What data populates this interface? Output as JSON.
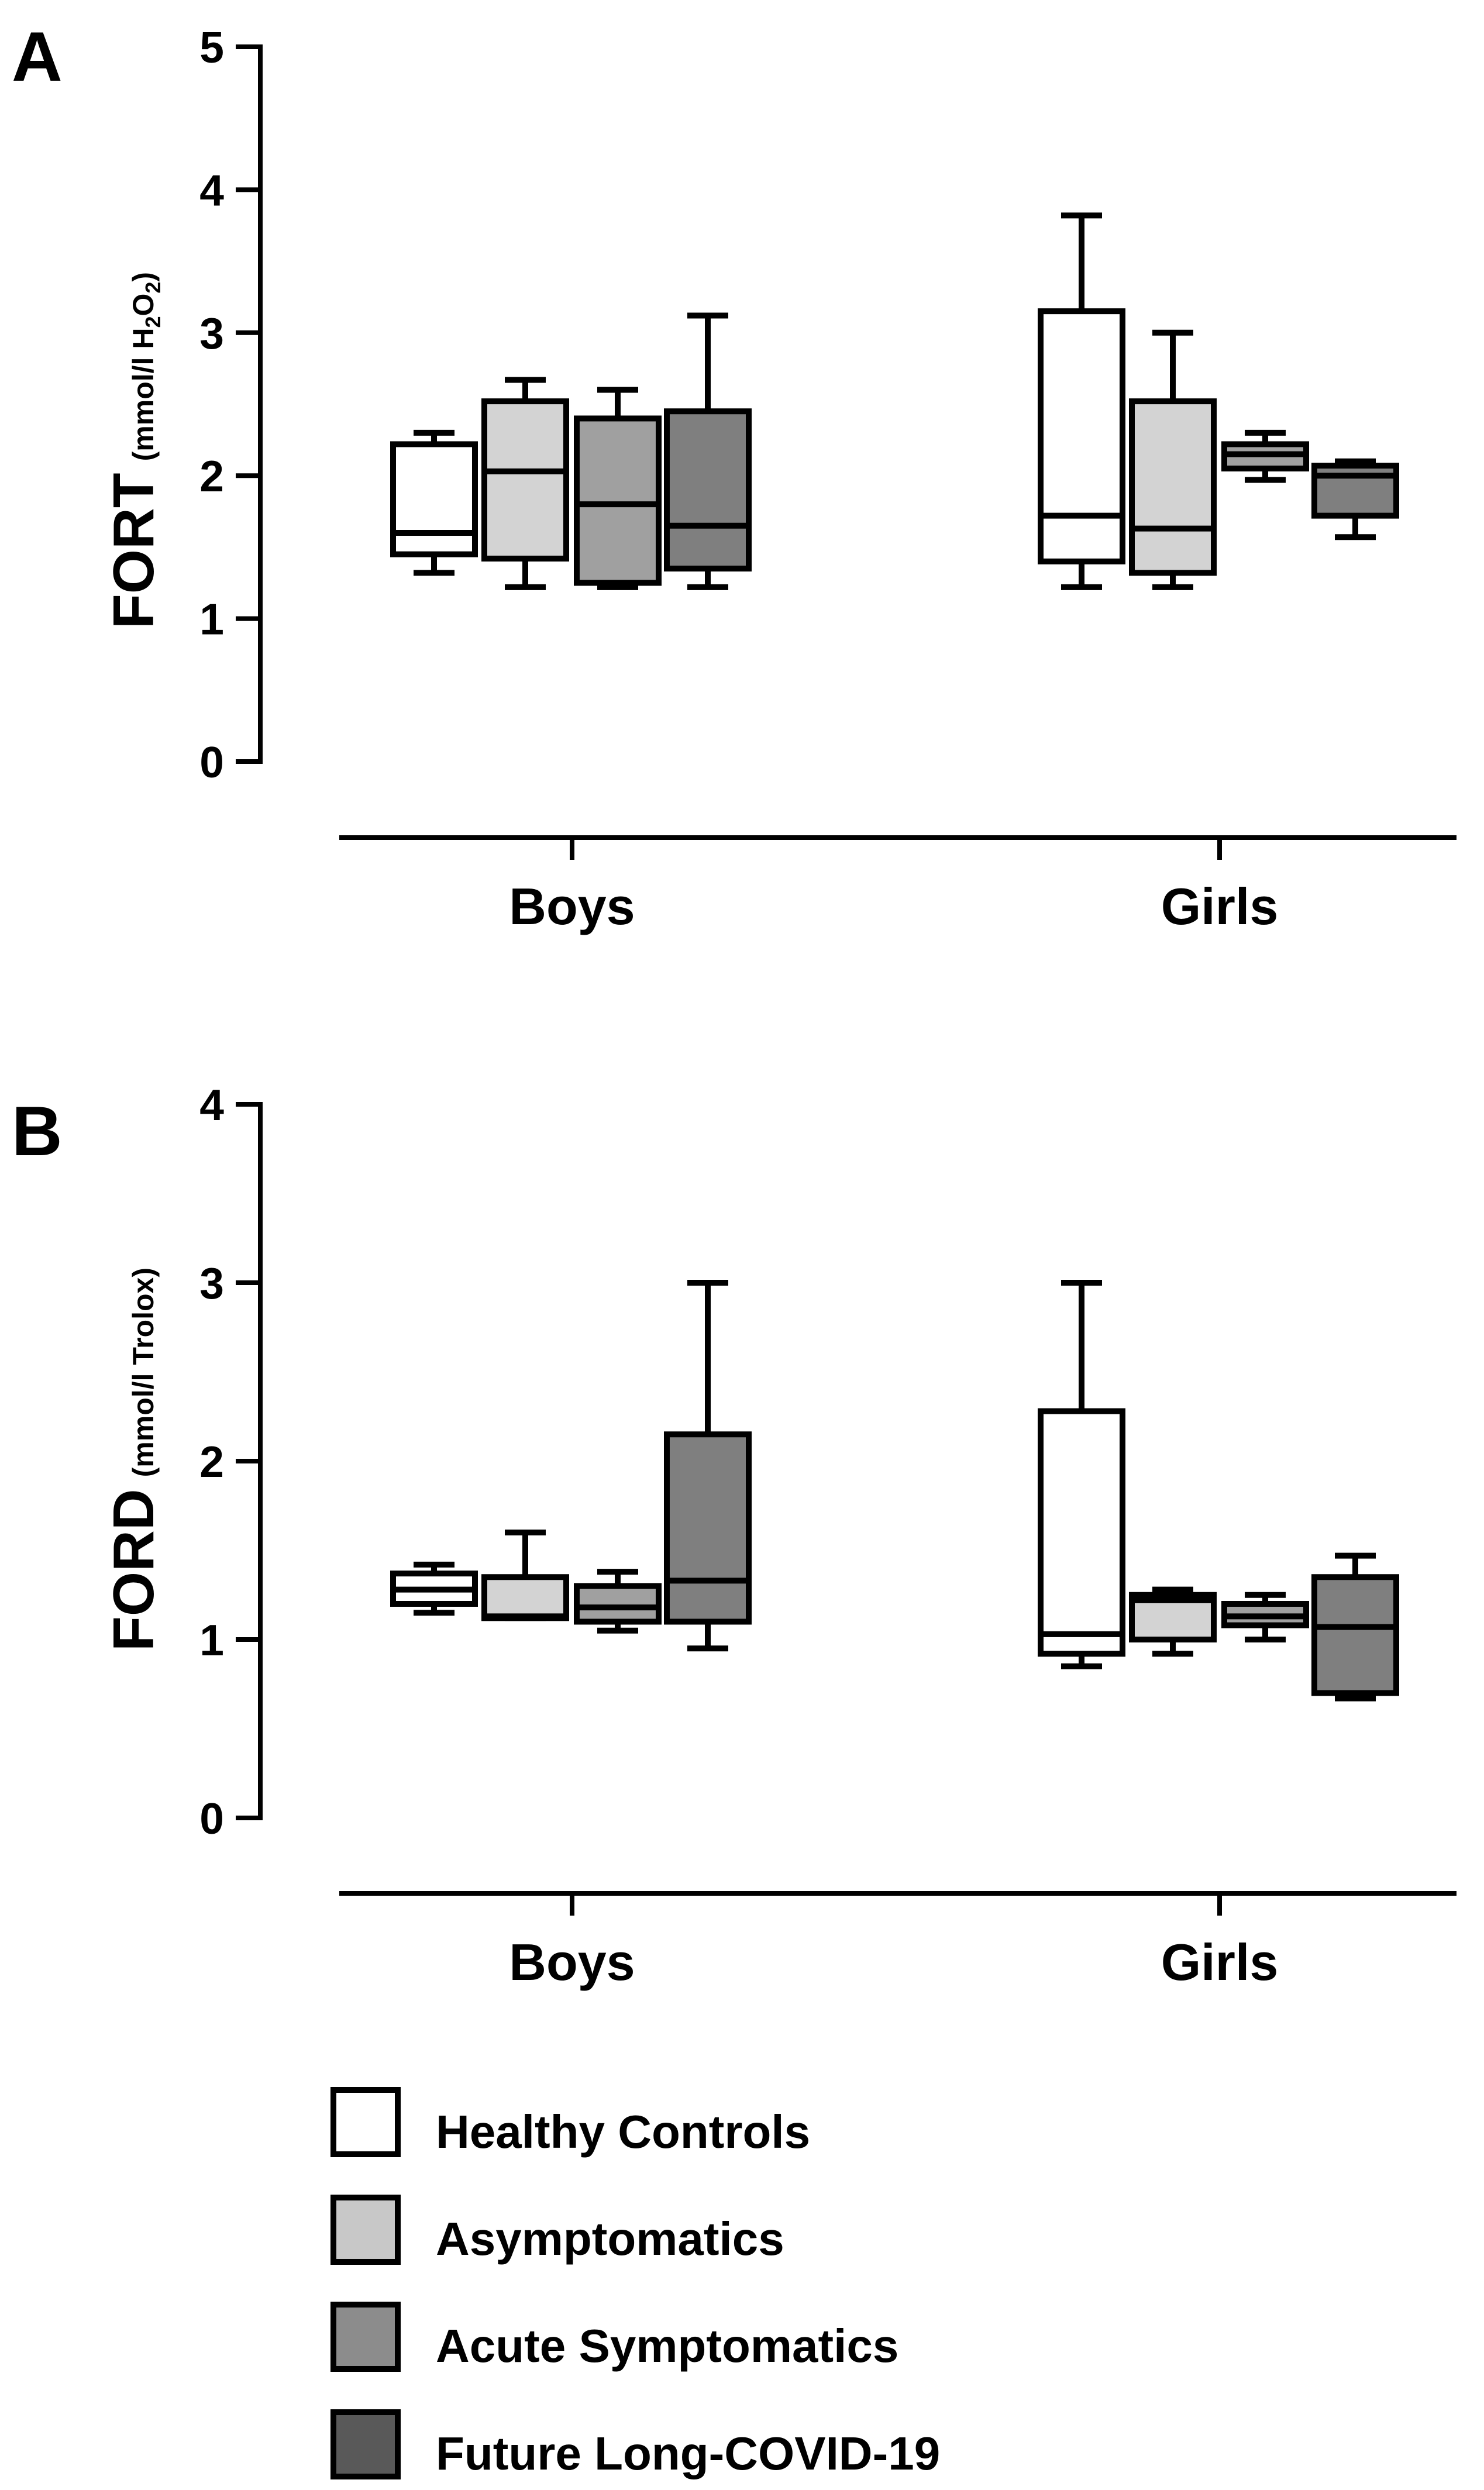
{
  "chart_data": [
    {
      "panel": "A",
      "type": "box",
      "ylabel": {
        "main": "FORT",
        "unit_prefix": "(mmol/l H",
        "sub1": "2",
        "mid": "O",
        "sub2": "2",
        "unit_suffix": ")"
      },
      "ylim": [
        0,
        5
      ],
      "yticks": [
        "0",
        "1",
        "2",
        "3",
        "4",
        "5"
      ],
      "categories": [
        "Boys",
        "Girls"
      ],
      "series": [
        {
          "name": "Healthy Controls",
          "color": "#ffffff",
          "boxes": [
            {
              "min": 1.32,
              "q1": 1.45,
              "median": 1.6,
              "q3": 2.22,
              "max": 2.3
            },
            {
              "min": 1.22,
              "q1": 1.4,
              "median": 1.72,
              "q3": 3.15,
              "max": 3.82
            }
          ]
        },
        {
          "name": "Asymptomatics",
          "color": "#d3d3d3",
          "boxes": [
            {
              "min": 1.22,
              "q1": 1.42,
              "median": 2.03,
              "q3": 2.52,
              "max": 2.67
            },
            {
              "min": 1.22,
              "q1": 1.32,
              "median": 1.63,
              "q3": 2.52,
              "max": 3.0
            }
          ]
        },
        {
          "name": "Acute Symptomatics",
          "color": "#a0a0a0",
          "boxes": [
            {
              "min": 1.22,
              "q1": 1.25,
              "median": 1.8,
              "q3": 2.4,
              "max": 2.6
            },
            {
              "min": 1.97,
              "q1": 2.05,
              "median": 2.15,
              "q3": 2.22,
              "max": 2.3
            }
          ]
        },
        {
          "name": "Future Long-COVID-19",
          "color": "#7f7f7f",
          "boxes": [
            {
              "min": 1.22,
              "q1": 1.35,
              "median": 1.65,
              "q3": 2.45,
              "max": 3.12
            },
            {
              "min": 1.57,
              "q1": 1.72,
              "median": 2.0,
              "q3": 2.07,
              "max": 2.1
            }
          ]
        }
      ]
    },
    {
      "panel": "B",
      "type": "box",
      "ylabel": {
        "main": "FORD",
        "unit": "(mmol/l Trolox)"
      },
      "ylim": [
        0,
        4
      ],
      "yticks": [
        "0",
        "1",
        "2",
        "3",
        "4"
      ],
      "categories": [
        "Boys",
        "Girls"
      ],
      "series": [
        {
          "name": "Healthy Controls",
          "color": "#ffffff",
          "boxes": [
            {
              "min": 1.15,
              "q1": 1.2,
              "median": 1.28,
              "q3": 1.37,
              "max": 1.42
            },
            {
              "min": 0.85,
              "q1": 0.92,
              "median": 1.03,
              "q3": 2.28,
              "max": 3.0
            }
          ]
        },
        {
          "name": "Asymptomatics",
          "color": "#d3d3d3",
          "boxes": [
            {
              "min": 1.12,
              "q1": 1.12,
              "median": 1.13,
              "q3": 1.35,
              "max": 1.6
            },
            {
              "min": 0.92,
              "q1": 1.0,
              "median": 1.22,
              "q3": 1.25,
              "max": 1.28
            }
          ]
        },
        {
          "name": "Acute Symptomatics",
          "color": "#a0a0a0",
          "boxes": [
            {
              "min": 1.05,
              "q1": 1.1,
              "median": 1.18,
              "q3": 1.3,
              "max": 1.38
            },
            {
              "min": 1.0,
              "q1": 1.08,
              "median": 1.13,
              "q3": 1.2,
              "max": 1.25
            }
          ]
        },
        {
          "name": "Future Long-COVID-19",
          "color": "#7f7f7f",
          "boxes": [
            {
              "min": 0.95,
              "q1": 1.1,
              "median": 1.33,
              "q3": 2.15,
              "max": 3.0
            },
            {
              "min": 0.67,
              "q1": 0.7,
              "median": 1.07,
              "q3": 1.35,
              "max": 1.47
            }
          ]
        }
      ]
    }
  ],
  "legend": [
    {
      "label": "Healthy Controls",
      "color": "#ffffff"
    },
    {
      "label": "Asymptomatics",
      "color": "#c8c8c8"
    },
    {
      "label": "Acute Symptomatics",
      "color": "#8c8c8c"
    },
    {
      "label": "Future Long-COVID-19",
      "color": "#595959"
    }
  ]
}
